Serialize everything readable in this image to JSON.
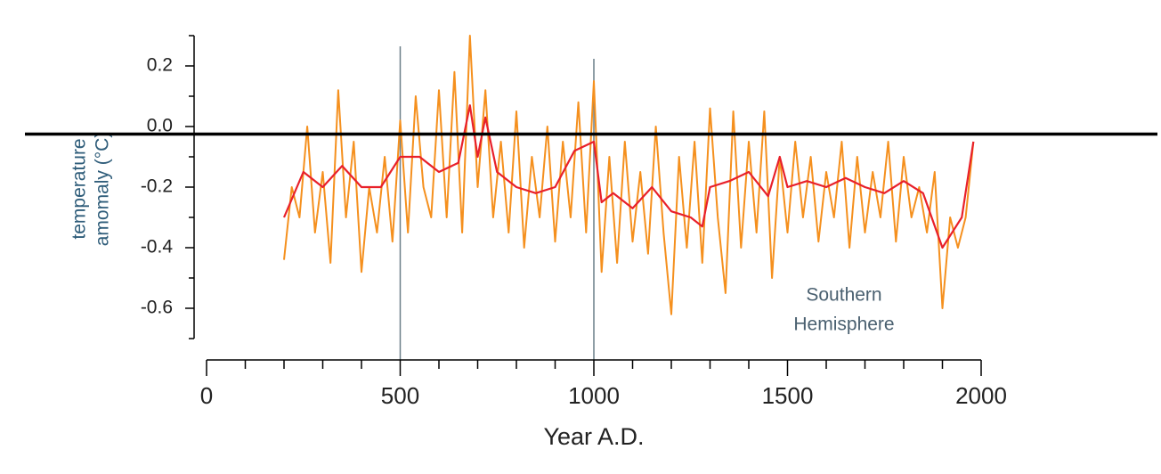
{
  "chart_data": {
    "type": "line",
    "ylabel": [
      "temperature",
      "amomaly (°C)"
    ],
    "xlabel": "Year A.D.",
    "annotation": [
      "Southern",
      "Hemisphere"
    ],
    "xlim": [
      0,
      2000
    ],
    "xticks": [
      0,
      500,
      1000,
      1500,
      2000
    ],
    "xminorticks": [
      100,
      200,
      300,
      400,
      600,
      700,
      800,
      900,
      1100,
      1200,
      1300,
      1400,
      1600,
      1700,
      1800,
      1900
    ],
    "ylim": [
      -0.7,
      0.3
    ],
    "yticks": [
      0.2,
      {
        "value": 0,
        "label": "0.0"
      },
      -0.2,
      -0.4,
      -0.6
    ],
    "yminorticks": [
      0.3,
      0.1,
      -0.1,
      -0.3,
      -0.5,
      -0.7
    ],
    "hline": -0.025,
    "hline_color": "#000000",
    "vlines": [
      500,
      1000
    ],
    "vline_color": "#6a7f88",
    "series": [
      {
        "color": "#f5901e",
        "x": [
          200,
          220,
          240,
          260,
          280,
          300,
          320,
          340,
          360,
          380,
          400,
          420,
          440,
          460,
          480,
          500,
          520,
          540,
          560,
          580,
          600,
          620,
          640,
          660,
          680,
          700,
          720,
          740,
          760,
          780,
          800,
          820,
          840,
          860,
          880,
          900,
          920,
          940,
          960,
          980,
          1000,
          1020,
          1040,
          1060,
          1080,
          1100,
          1120,
          1140,
          1160,
          1180,
          1200,
          1220,
          1240,
          1260,
          1280,
          1300,
          1320,
          1340,
          1360,
          1380,
          1400,
          1420,
          1440,
          1460,
          1480,
          1500,
          1520,
          1540,
          1560,
          1580,
          1600,
          1620,
          1640,
          1660,
          1680,
          1700,
          1720,
          1740,
          1760,
          1780,
          1800,
          1820,
          1840,
          1860,
          1880,
          1900,
          1920,
          1940,
          1960,
          1980
        ],
        "values": [
          -0.44,
          -0.2,
          -0.3,
          0.0,
          -0.35,
          -0.15,
          -0.45,
          0.12,
          -0.3,
          -0.05,
          -0.48,
          -0.2,
          -0.35,
          -0.1,
          -0.38,
          0.02,
          -0.35,
          0.1,
          -0.2,
          -0.3,
          0.12,
          -0.3,
          0.18,
          -0.35,
          0.3,
          -0.2,
          0.12,
          -0.3,
          -0.05,
          -0.35,
          0.05,
          -0.4,
          -0.1,
          -0.3,
          0.0,
          -0.38,
          -0.05,
          -0.3,
          0.08,
          -0.35,
          0.15,
          -0.48,
          -0.1,
          -0.45,
          -0.05,
          -0.38,
          -0.15,
          -0.42,
          0.0,
          -0.35,
          -0.62,
          -0.1,
          -0.4,
          -0.05,
          -0.45,
          0.06,
          -0.3,
          -0.55,
          0.05,
          -0.4,
          -0.05,
          -0.35,
          0.05,
          -0.5,
          -0.1,
          -0.35,
          -0.05,
          -0.3,
          -0.1,
          -0.38,
          -0.15,
          -0.3,
          -0.05,
          -0.4,
          -0.1,
          -0.35,
          -0.15,
          -0.3,
          -0.05,
          -0.38,
          -0.1,
          -0.3,
          -0.2,
          -0.35,
          -0.15,
          -0.6,
          -0.3,
          -0.4,
          -0.3,
          -0.05
        ]
      },
      {
        "color": "#e8202a",
        "x": [
          200,
          250,
          300,
          350,
          400,
          450,
          500,
          550,
          600,
          650,
          680,
          700,
          720,
          750,
          800,
          850,
          900,
          950,
          1000,
          1020,
          1050,
          1100,
          1150,
          1200,
          1250,
          1280,
          1300,
          1350,
          1400,
          1450,
          1480,
          1500,
          1550,
          1600,
          1650,
          1700,
          1750,
          1800,
          1850,
          1900,
          1950,
          1980
        ],
        "values": [
          -0.3,
          -0.15,
          -0.2,
          -0.13,
          -0.2,
          -0.2,
          -0.1,
          -0.1,
          -0.15,
          -0.12,
          0.07,
          -0.1,
          0.03,
          -0.15,
          -0.2,
          -0.22,
          -0.2,
          -0.08,
          -0.05,
          -0.25,
          -0.22,
          -0.27,
          -0.2,
          -0.28,
          -0.3,
          -0.33,
          -0.2,
          -0.18,
          -0.15,
          -0.23,
          -0.1,
          -0.2,
          -0.18,
          -0.2,
          -0.17,
          -0.2,
          -0.22,
          -0.18,
          -0.22,
          -0.4,
          -0.3,
          -0.05
        ]
      }
    ]
  }
}
